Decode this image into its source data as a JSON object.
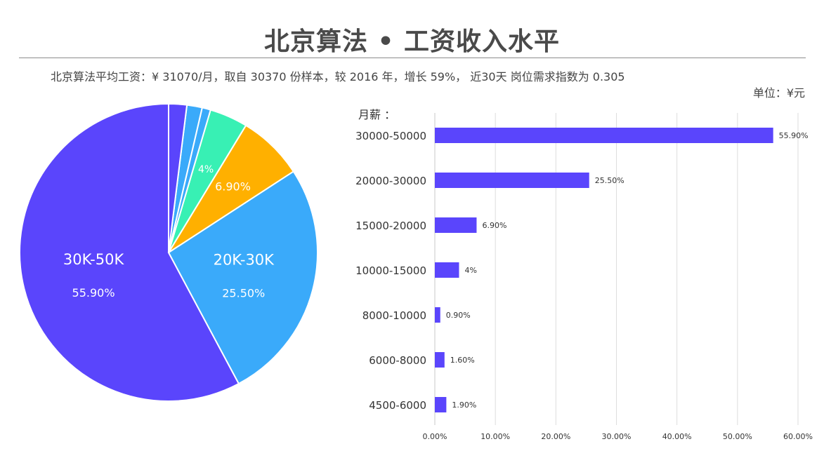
{
  "header": {
    "title": "北京算法 • 工资收入水平",
    "subtitle": "北京算法平均工资：¥ 31070/月，取自 30370 份样本，较 2016 年，增长 59%， 近30天 岗位需求指数为 0.305",
    "unit": "单位：¥元"
  },
  "chart_data": [
    {
      "type": "pie",
      "slices": [
        {
          "label": "30K-50K",
          "value": 55.9,
          "value_label": "55.90%",
          "color": "#5a45fc",
          "show_name": true,
          "show_value": true
        },
        {
          "label": "20K-30K",
          "value": 25.5,
          "value_label": "25.50%",
          "color": "#3aaafa",
          "show_name": true,
          "show_value": true
        },
        {
          "label": "15K-20K",
          "value": 6.9,
          "value_label": "6.90%",
          "color": "#ffb000",
          "show_name": false,
          "show_value": true
        },
        {
          "label": "10K-15K",
          "value": 4.0,
          "value_label": "4%",
          "color": "#38f0b4",
          "show_name": false,
          "show_value": true
        },
        {
          "label": "8K-10K",
          "value": 0.9,
          "value_label": "0.90%",
          "color": "#3aaafa",
          "show_name": false,
          "show_value": false
        },
        {
          "label": "6K-8K",
          "value": 1.6,
          "value_label": "1.60%",
          "color": "#3aaafa",
          "show_name": false,
          "show_value": false
        },
        {
          "label": "4.5K-6K",
          "value": 1.9,
          "value_label": "1.90%",
          "color": "#5a45fc",
          "show_name": false,
          "show_value": false
        }
      ],
      "legend": "none"
    },
    {
      "type": "bar",
      "orientation": "horizontal",
      "ylabel": "月薪 ：",
      "categories": [
        "30000-50000",
        "20000-30000",
        "15000-20000",
        "10000-15000",
        "8000-10000",
        "6000-8000",
        "4500-6000"
      ],
      "values": [
        55.9,
        25.5,
        6.9,
        4.0,
        0.9,
        1.6,
        1.9
      ],
      "value_labels": [
        "55.90%",
        "25.50%",
        "6.90%",
        "4%",
        "0.90%",
        "1.60%",
        "1.90%"
      ],
      "xlim": [
        0,
        60
      ],
      "xticks": [
        0,
        10,
        20,
        30,
        40,
        50,
        60
      ],
      "xtick_labels": [
        "0.00%",
        "10.00%",
        "20.00%",
        "30.00%",
        "40.00%",
        "50.00%",
        "60.00%"
      ],
      "grid": true,
      "bar_color": "#5a45fc"
    }
  ]
}
